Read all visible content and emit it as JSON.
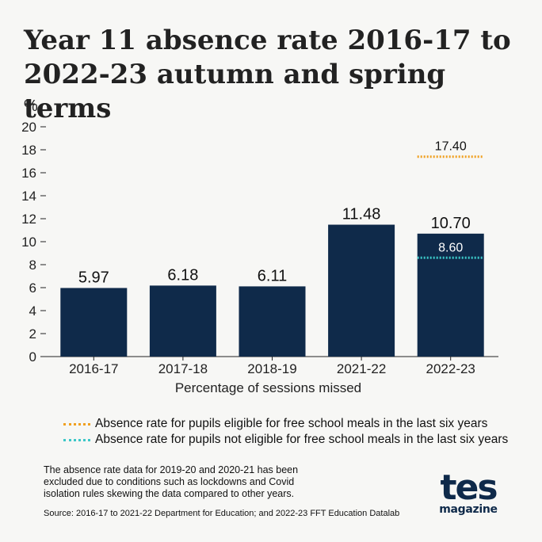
{
  "chart_data": {
    "type": "bar",
    "title": "Year 11 absence rate 2016-17 to 2022-23 autumn and spring terms",
    "ylabel": "%",
    "xlabel": "Percentage of sessions missed",
    "ylim": [
      0,
      20
    ],
    "yticks": [
      0,
      2,
      4,
      6,
      8,
      10,
      12,
      14,
      16,
      18,
      20
    ],
    "categories": [
      "2016-17",
      "2017-18",
      "2018-19",
      "2021-22",
      "2022-23"
    ],
    "series": [
      {
        "values": [
          5.97,
          6.18,
          6.11,
          11.48,
          10.7
        ],
        "labels": [
          "5.97",
          "6.18",
          "6.11",
          "11.48",
          "10.70"
        ],
        "color": "#0f2a4a"
      }
    ],
    "markers": [
      {
        "name": "Absence rate for pupils eligible for free school meals in the last six years",
        "category": "2022-23",
        "value": 17.4,
        "label": "17.40",
        "color": "#f0a020"
      },
      {
        "name": "Absence rate for pupils not eligible for free school meals in the last six years",
        "category": "2022-23",
        "value": 8.6,
        "label": "8.60",
        "color": "#3cc8c8"
      }
    ],
    "grid": false,
    "legend_position": "bottom"
  },
  "note": "The absence rate data for 2019-20 and 2020-21 has been excluded due to conditions such as lockdowns and Covid isolation rules skewing the data compared to other years.",
  "source": "Source: 2016-17 to 2021-22 Department for Education; and 2022-23 FFT Education Datalab",
  "logo": {
    "main": "tes",
    "sub": "magazine"
  },
  "colors": {
    "background": "#f7f7f5",
    "bar": "#0f2a4a",
    "fsm": "#f0a020",
    "non_fsm": "#3cc8c8"
  }
}
